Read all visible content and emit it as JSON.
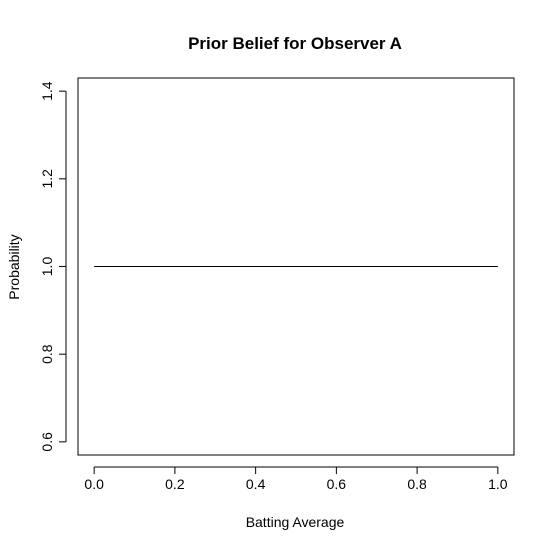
{
  "chart_data": {
    "type": "line",
    "title": "Prior Belief for Observer A",
    "xlabel": "Batting Average",
    "ylabel": "Probability",
    "xlim": [
      -0.04,
      1.04
    ],
    "ylim": [
      0.57,
      1.43
    ],
    "xticks": [
      0.0,
      0.2,
      0.4,
      0.6,
      0.8,
      1.0
    ],
    "xtick_labels": [
      "0.0",
      "0.2",
      "0.4",
      "0.6",
      "0.8",
      "1.0"
    ],
    "yticks": [
      0.6,
      0.8,
      1.0,
      1.2,
      1.4
    ],
    "ytick_labels": [
      "0.6",
      "0.8",
      "1.0",
      "1.2",
      "1.4"
    ],
    "grid": false,
    "series": [
      {
        "x": [
          0.0,
          1.0
        ],
        "y": [
          1.0,
          1.0
        ],
        "color": "#000000"
      }
    ]
  }
}
